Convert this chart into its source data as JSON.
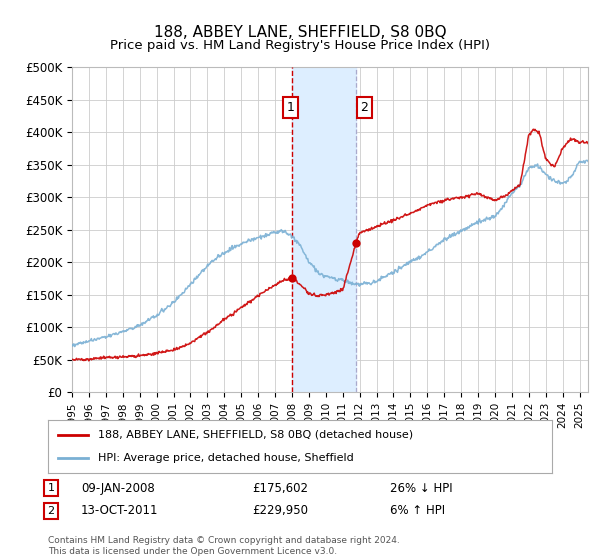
{
  "title": "188, ABBEY LANE, SHEFFIELD, S8 0BQ",
  "subtitle": "Price paid vs. HM Land Registry's House Price Index (HPI)",
  "ylim": [
    0,
    500000
  ],
  "yticks": [
    0,
    50000,
    100000,
    150000,
    200000,
    250000,
    300000,
    350000,
    400000,
    450000,
    500000
  ],
  "ytick_labels": [
    "£0",
    "£50K",
    "£100K",
    "£150K",
    "£200K",
    "£250K",
    "£300K",
    "£350K",
    "£400K",
    "£450K",
    "£500K"
  ],
  "xlim_start": 1995.0,
  "xlim_end": 2025.5,
  "transaction1_date": 2008.03,
  "transaction1_price": 175602,
  "transaction1_label": "09-JAN-2008",
  "transaction1_value": "£175,602",
  "transaction1_hpi": "26% ↓ HPI",
  "transaction2_date": 2011.79,
  "transaction2_price": 229950,
  "transaction2_label": "13-OCT-2011",
  "transaction2_value": "£229,950",
  "transaction2_hpi": "6% ↑ HPI",
  "red_color": "#cc0000",
  "blue_color": "#7ab0d4",
  "shade_color": "#ddeeff",
  "grid_color": "#cccccc",
  "background_color": "#ffffff",
  "legend_label_red": "188, ABBEY LANE, SHEFFIELD, S8 0BQ (detached house)",
  "legend_label_blue": "HPI: Average price, detached house, Sheffield",
  "footnote": "Contains HM Land Registry data © Crown copyright and database right 2024.\nThis data is licensed under the Open Government Licence v3.0.",
  "hpi_years": [
    1995,
    1996,
    1997,
    1998,
    1999,
    2000,
    2001,
    2002,
    2003,
    2004,
    2005,
    2006,
    2007,
    2007.5,
    2008,
    2008.5,
    2009,
    2009.5,
    2010,
    2010.5,
    2011,
    2011.5,
    2012,
    2013,
    2014,
    2015,
    2016,
    2017,
    2018,
    2019,
    2020,
    2021,
    2021.5,
    2022,
    2022.5,
    2023,
    2023.5,
    2024,
    2024.5,
    2025
  ],
  "hpi_vals": [
    72000,
    78000,
    85000,
    93000,
    103000,
    118000,
    138000,
    165000,
    195000,
    215000,
    228000,
    238000,
    245000,
    248000,
    240000,
    225000,
    200000,
    185000,
    178000,
    175000,
    172000,
    168000,
    165000,
    170000,
    185000,
    200000,
    215000,
    235000,
    248000,
    262000,
    270000,
    305000,
    320000,
    345000,
    350000,
    335000,
    325000,
    320000,
    330000,
    355000
  ],
  "prop_years": [
    1995,
    1996,
    1997,
    1998,
    1999,
    2000,
    2001,
    2002,
    2003,
    2004,
    2005,
    2006,
    2007,
    2007.5,
    2008.03,
    2008.5,
    2009,
    2009.5,
    2010,
    2010.5,
    2011,
    2011.79,
    2012,
    2013,
    2014,
    2015,
    2016,
    2017,
    2018,
    2019,
    2020,
    2020.5,
    2021,
    2021.5,
    2022,
    2022.3,
    2022.6,
    2023,
    2023.5,
    2024,
    2024.5,
    2025
  ],
  "prop_vals": [
    50000,
    51000,
    53000,
    54000,
    56000,
    60000,
    65000,
    75000,
    92000,
    112000,
    130000,
    148000,
    165000,
    172000,
    175602,
    165000,
    152000,
    148000,
    150000,
    153000,
    157000,
    229950,
    245000,
    255000,
    265000,
    275000,
    288000,
    295000,
    300000,
    305000,
    295000,
    300000,
    310000,
    320000,
    395000,
    405000,
    400000,
    360000,
    345000,
    375000,
    390000,
    385000
  ]
}
